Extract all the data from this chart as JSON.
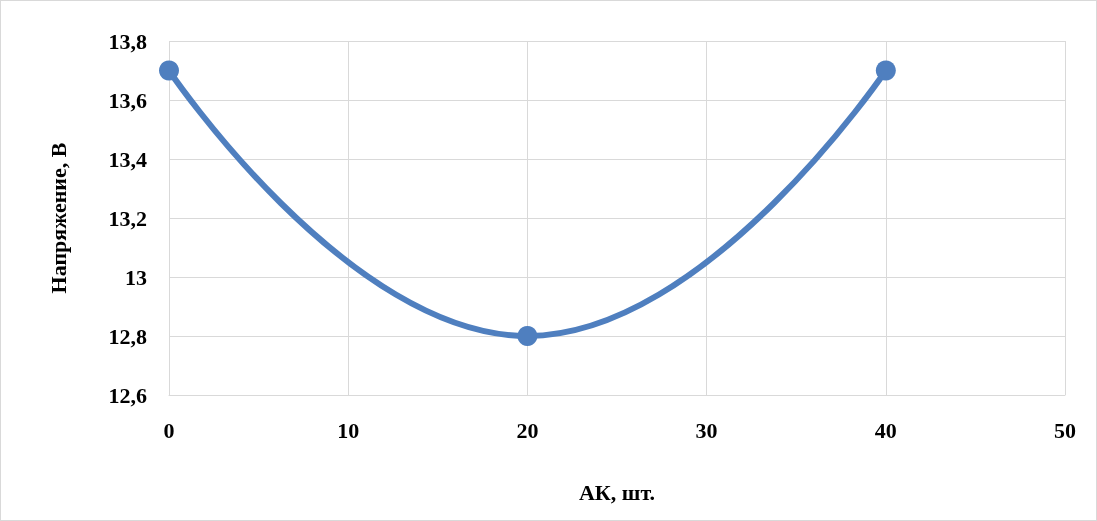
{
  "chart_data": {
    "type": "line",
    "xlabel": "АК, шт.",
    "ylabel": "Напряжение, В",
    "x": [
      0,
      20,
      40
    ],
    "series": [
      {
        "color": "#4f7fbf",
        "values": [
          13.7,
          12.8,
          13.7
        ]
      }
    ],
    "xlim": [
      0,
      50
    ],
    "xticks": [
      0,
      10,
      20,
      30,
      40,
      50
    ],
    "ylim": [
      12.6,
      13.8
    ],
    "yticks": [
      {
        "value": 12.6,
        "label": "12,6"
      },
      {
        "value": 12.8,
        "label": "12,8"
      },
      13,
      {
        "value": 13.2,
        "label": "13,2"
      },
      {
        "value": 13.4,
        "label": "13,4"
      },
      {
        "value": 13.6,
        "label": "13,6"
      },
      {
        "value": 13.8,
        "label": "13,8"
      }
    ],
    "grid": true,
    "marker": "circle",
    "line_style": "solid"
  }
}
